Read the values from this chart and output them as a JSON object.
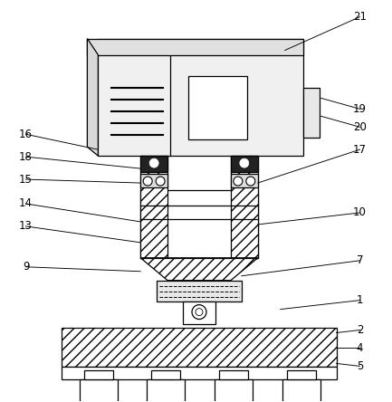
{
  "bg_color": "#ffffff",
  "line_color": "#000000",
  "fig_width": 4.33,
  "fig_height": 4.44,
  "dpi": 100,
  "label_fs": 8.5,
  "lw": 0.9
}
